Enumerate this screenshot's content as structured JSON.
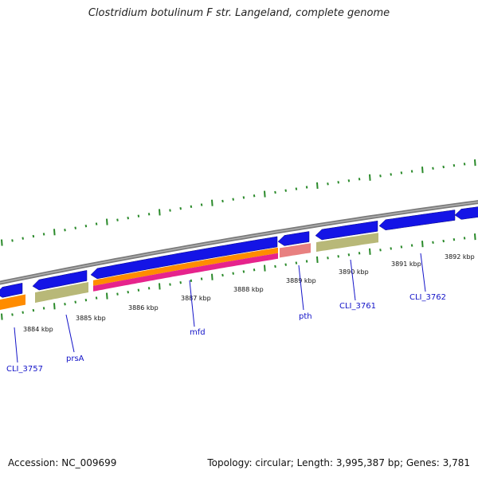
{
  "title": "Clostridium botulinum F str. Langeland, complete genome",
  "footer": {
    "accession": "Accession: NC_009699",
    "summary": "Topology: circular; Length: 3,995,387 bp; Genes: 3,781"
  },
  "colors": {
    "backbone": "#8c8c8c",
    "cds": "#1414e6",
    "gene": "#b8b878",
    "orange_feature": "#ff8c00",
    "magenta_feature": "#e6238c",
    "pink_feature": "#e88080",
    "ticks": "#2a8a2a",
    "label": "#1212c8"
  },
  "kbp_labels": [
    "3884 kbp",
    "3885 kbp",
    "3886 kbp",
    "3887 kbp",
    "3888 kbp",
    "3889 kbp",
    "3890 kbp",
    "3891 kbp",
    "3892 kbp"
  ],
  "gene_labels": [
    "CLI_3757",
    "prsA",
    "mfd",
    "pth",
    "CLI_3761",
    "CLI_3762"
  ]
}
